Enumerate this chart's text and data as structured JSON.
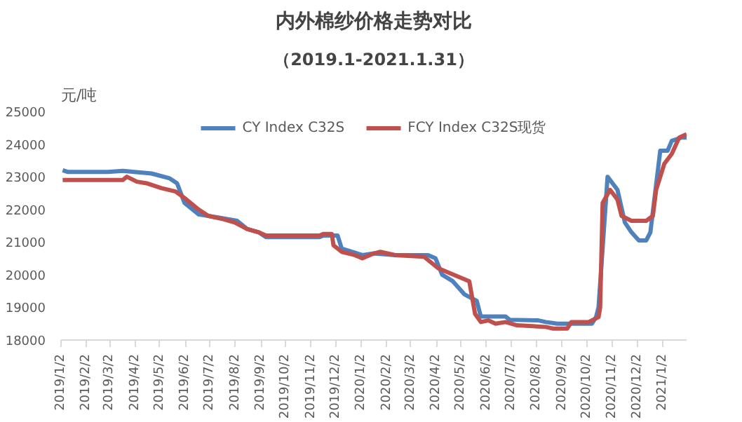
{
  "chart_data": {
    "type": "line",
    "title": "内外棉纱价格走势对比",
    "subtitle": "（2019.1-2021.1.31）",
    "ylabel": "元/吨",
    "xlim": [
      "2019-01-02",
      "2021-01-31"
    ],
    "xticks": [
      {
        "value": "2019-01-02",
        "label": "2019/1/2"
      },
      {
        "value": "2019-02-02",
        "label": "2019/2/2"
      },
      {
        "value": "2019-03-02",
        "label": "2019/3/2"
      },
      {
        "value": "2019-04-02",
        "label": "2019/4/2"
      },
      {
        "value": "2019-05-02",
        "label": "2019/5/2"
      },
      {
        "value": "2019-06-02",
        "label": "2019/6/2"
      },
      {
        "value": "2019-07-02",
        "label": "2019/7/2"
      },
      {
        "value": "2019-08-02",
        "label": "2019/8/2"
      },
      {
        "value": "2019-09-02",
        "label": "2019/9/2"
      },
      {
        "value": "2019-10-02",
        "label": "2019/10/2"
      },
      {
        "value": "2019-11-02",
        "label": "2019/11/2"
      },
      {
        "value": "2019-12-02",
        "label": "2019/12/2"
      },
      {
        "value": "2020-01-02",
        "label": "2020/1/2"
      },
      {
        "value": "2020-02-02",
        "label": "2020/2/2"
      },
      {
        "value": "2020-03-02",
        "label": "2020/3/2"
      },
      {
        "value": "2020-04-02",
        "label": "2020/4/2"
      },
      {
        "value": "2020-05-02",
        "label": "2020/5/2"
      },
      {
        "value": "2020-06-02",
        "label": "2020/6/2"
      },
      {
        "value": "2020-07-02",
        "label": "2020/7/2"
      },
      {
        "value": "2020-08-02",
        "label": "2020/8/2"
      },
      {
        "value": "2020-09-02",
        "label": "2020/9/2"
      },
      {
        "value": "2020-10-02",
        "label": "2020/10/2"
      },
      {
        "value": "2020-11-02",
        "label": "2020/11/2"
      },
      {
        "value": "2020-12-02",
        "label": "2020/12/2"
      },
      {
        "value": "2021-01-02",
        "label": "2021/1/2"
      }
    ],
    "ylim": [
      18000,
      25000
    ],
    "yticks": [
      18000,
      19000,
      20000,
      21000,
      22000,
      23000,
      24000,
      25000
    ],
    "grid": false,
    "legend": "top",
    "marker": "none",
    "line_style": "solid",
    "series": [
      {
        "name": "CY Index C32S",
        "color": "#4f81bd",
        "x": [
          "2019-01-04",
          "2019-01-10",
          "2019-02-28",
          "2019-03-18",
          "2019-04-22",
          "2019-05-14",
          "2019-05-23",
          "2019-06-01",
          "2019-06-18",
          "2019-06-30",
          "2019-07-13",
          "2019-08-04",
          "2019-08-16",
          "2019-08-30",
          "2019-09-08",
          "2019-11-12",
          "2019-11-17",
          "2019-12-04",
          "2019-12-09",
          "2019-12-22",
          "2020-01-03",
          "2020-01-17",
          "2020-02-12",
          "2020-03-23",
          "2020-04-01",
          "2020-04-09",
          "2020-04-22",
          "2020-05-06",
          "2020-05-21",
          "2020-05-26",
          "2020-06-25",
          "2020-06-30",
          "2020-08-04",
          "2020-08-13",
          "2020-08-27",
          "2020-10-08",
          "2020-10-13",
          "2020-10-16",
          "2020-10-27",
          "2020-11-08",
          "2020-11-17",
          "2020-11-25",
          "2020-12-04",
          "2020-12-13",
          "2020-12-18",
          "2020-12-30",
          "2021-01-08",
          "2021-01-13",
          "2021-01-25",
          "2021-01-31"
        ],
        "values": [
          23200,
          23150,
          23150,
          23180,
          23100,
          22950,
          22800,
          22200,
          21850,
          21800,
          21750,
          21650,
          21400,
          21300,
          21150,
          21150,
          21200,
          21200,
          20800,
          20700,
          20600,
          20650,
          20600,
          20600,
          20500,
          20000,
          19800,
          19400,
          19200,
          18720,
          18720,
          18620,
          18600,
          18550,
          18500,
          18500,
          18700,
          19000,
          23000,
          22600,
          21600,
          21300,
          21050,
          21050,
          21300,
          23800,
          23800,
          24100,
          24200,
          24200
        ]
      },
      {
        "name": "FCY Index C32S现货",
        "color": "#c0504d",
        "x": [
          "2019-01-04",
          "2019-03-18",
          "2019-03-23",
          "2019-04-04",
          "2019-04-16",
          "2019-05-04",
          "2019-05-21",
          "2019-06-01",
          "2019-06-18",
          "2019-06-30",
          "2019-07-18",
          "2019-08-01",
          "2019-08-16",
          "2019-08-30",
          "2019-09-08",
          "2019-11-12",
          "2019-11-17",
          "2019-11-27",
          "2019-11-29",
          "2019-12-09",
          "2019-12-25",
          "2020-01-03",
          "2020-01-17",
          "2020-01-25",
          "2020-02-12",
          "2020-03-18",
          "2020-04-04",
          "2020-04-18",
          "2020-05-12",
          "2020-05-19",
          "2020-05-26",
          "2020-06-04",
          "2020-06-13",
          "2020-06-25",
          "2020-07-09",
          "2020-08-13",
          "2020-08-22",
          "2020-09-08",
          "2020-09-13",
          "2020-10-04",
          "2020-10-16",
          "2020-10-18",
          "2020-10-21",
          "2020-10-30",
          "2020-11-08",
          "2020-11-13",
          "2020-11-25",
          "2020-12-13",
          "2020-12-21",
          "2020-12-25",
          "2021-01-04",
          "2021-01-13",
          "2021-01-22",
          "2021-01-31"
        ],
        "values": [
          22900,
          22900,
          23000,
          22850,
          22800,
          22650,
          22550,
          22350,
          22000,
          21800,
          21700,
          21600,
          21400,
          21300,
          21200,
          21200,
          21250,
          21250,
          20900,
          20700,
          20600,
          20500,
          20650,
          20700,
          20600,
          20550,
          20200,
          20050,
          19800,
          18800,
          18550,
          18600,
          18500,
          18550,
          18450,
          18400,
          18350,
          18350,
          18550,
          18550,
          18700,
          19000,
          22200,
          22600,
          22300,
          21800,
          21650,
          21650,
          21800,
          22600,
          23400,
          23700,
          24200,
          24300
        ]
      }
    ]
  }
}
